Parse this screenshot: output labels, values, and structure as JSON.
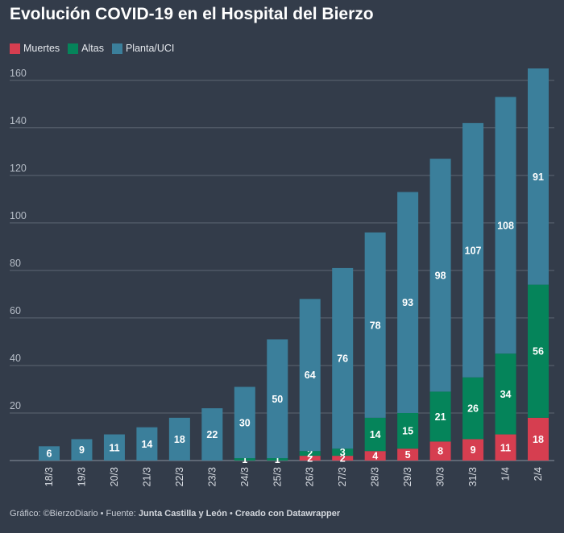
{
  "title": "Evolución COVID-19 en el Hospital del Bierzo",
  "footer": {
    "prefix": "Gráfico: ©BierzoDiario • Fuente: ",
    "source": "Junta Castilla y León",
    "separator": " • ",
    "credit": "Creado con Datawrapper"
  },
  "colors": {
    "background": "#333c4a",
    "muertes": "#d63e50",
    "altas": "#05845a",
    "planta": "#3b7f9b",
    "grid": "#5d6673",
    "tick": "#b5bcc6"
  },
  "chart_data": {
    "type": "bar",
    "stacked": true,
    "categories": [
      "18/3",
      "19/3",
      "20/3",
      "21/3",
      "22/3",
      "23/3",
      "24/3",
      "25/3",
      "26/3",
      "27/3",
      "28/3",
      "29/3",
      "30/3",
      "31/3",
      "1/4",
      "2/4"
    ],
    "series": [
      {
        "name": "Muertes",
        "color": "#d63e50",
        "values": [
          0,
          0,
          0,
          0,
          0,
          0,
          0,
          0,
          2,
          2,
          4,
          5,
          8,
          9,
          11,
          18
        ]
      },
      {
        "name": "Altas",
        "color": "#05845a",
        "values": [
          0,
          0,
          0,
          0,
          0,
          0,
          1,
          1,
          2,
          3,
          14,
          15,
          21,
          26,
          34,
          56
        ]
      },
      {
        "name": "Planta/UCI",
        "color": "#3b7f9b",
        "values": [
          6,
          9,
          11,
          14,
          18,
          22,
          30,
          50,
          64,
          76,
          78,
          93,
          98,
          107,
          108,
          91
        ]
      }
    ],
    "ylim": [
      0,
      165
    ],
    "yticks": [
      20,
      40,
      60,
      80,
      100,
      120,
      140,
      160
    ],
    "legend": "top-left",
    "grid": true
  }
}
